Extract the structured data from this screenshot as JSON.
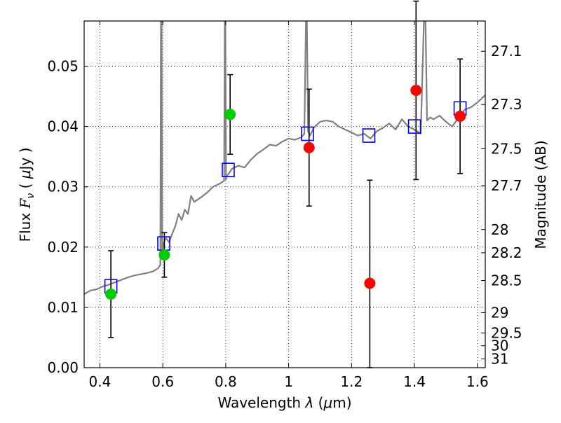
{
  "chart_data": {
    "type": "scatter",
    "title": "",
    "xlabel_parts": [
      "Wavelength  ",
      "λ",
      " (",
      "μ",
      "m)"
    ],
    "ylabel_parts": [
      "Flux  ",
      "F",
      "ν",
      "  ( ",
      "μ",
      "Jy )"
    ],
    "y2label": "Magnitude (AB)",
    "xlim": [
      0.35,
      1.625
    ],
    "ylim": [
      0.0,
      0.0575
    ],
    "grid": true,
    "x_ticks": [
      {
        "value": 0.4,
        "label": "0.4"
      },
      {
        "value": 0.6,
        "label": "0.6"
      },
      {
        "value": 0.8,
        "label": "0.8"
      },
      {
        "value": 1.0,
        "label": "1"
      },
      {
        "value": 1.2,
        "label": "1.2"
      },
      {
        "value": 1.4,
        "label": "1.4"
      },
      {
        "value": 1.6,
        "label": "1.6"
      }
    ],
    "y_ticks": [
      {
        "value": 0.0,
        "label": "0.00"
      },
      {
        "value": 0.01,
        "label": "0.01"
      },
      {
        "value": 0.02,
        "label": "0.02"
      },
      {
        "value": 0.03,
        "label": "0.03"
      },
      {
        "value": 0.04,
        "label": "0.04"
      },
      {
        "value": 0.05,
        "label": "0.05"
      }
    ],
    "y2_ticks": [
      {
        "value": 27.1,
        "label": "27.1"
      },
      {
        "value": 27.3,
        "label": "27.3"
      },
      {
        "value": 27.5,
        "label": "27.5"
      },
      {
        "value": 27.7,
        "label": "27.7"
      },
      {
        "value": 28.0,
        "label": "28"
      },
      {
        "value": 28.2,
        "label": "28.2"
      },
      {
        "value": 28.5,
        "label": "28.5"
      },
      {
        "value": 29.0,
        "label": "29"
      },
      {
        "value": 29.5,
        "label": "29.5"
      },
      {
        "value": 30.0,
        "label": "30"
      },
      {
        "value": 31.0,
        "label": "31"
      }
    ],
    "template_spectrum": {
      "color": "#808080",
      "x": [
        0.35,
        0.37,
        0.39,
        0.41,
        0.43,
        0.45,
        0.47,
        0.49,
        0.51,
        0.53,
        0.55,
        0.57,
        0.585,
        0.592,
        0.594,
        0.596,
        0.598,
        0.6,
        0.605,
        0.61,
        0.62,
        0.63,
        0.64,
        0.65,
        0.66,
        0.67,
        0.68,
        0.69,
        0.7,
        0.72,
        0.74,
        0.76,
        0.78,
        0.795,
        0.797,
        0.799,
        0.801,
        0.803,
        0.81,
        0.82,
        0.84,
        0.86,
        0.88,
        0.9,
        0.92,
        0.94,
        0.96,
        0.98,
        1.0,
        1.02,
        1.04,
        1.05,
        1.055,
        1.058,
        1.062,
        1.068,
        1.08,
        1.1,
        1.12,
        1.14,
        1.16,
        1.18,
        1.2,
        1.22,
        1.24,
        1.26,
        1.28,
        1.3,
        1.32,
        1.34,
        1.36,
        1.38,
        1.4,
        1.42,
        1.43,
        1.435,
        1.44,
        1.45,
        1.46,
        1.48,
        1.5,
        1.52,
        1.54,
        1.56,
        1.58,
        1.6,
        1.625
      ],
      "y": [
        0.0122,
        0.0128,
        0.013,
        0.0135,
        0.0138,
        0.0142,
        0.0146,
        0.015,
        0.0153,
        0.0155,
        0.0157,
        0.016,
        0.0165,
        0.017,
        0.0575,
        0.0575,
        0.018,
        0.0198,
        0.021,
        0.0215,
        0.0208,
        0.0222,
        0.0235,
        0.0255,
        0.0245,
        0.0262,
        0.0255,
        0.0285,
        0.0275,
        0.0282,
        0.029,
        0.03,
        0.0305,
        0.031,
        0.0575,
        0.0575,
        0.0312,
        0.0318,
        0.0322,
        0.033,
        0.0335,
        0.0332,
        0.0345,
        0.0355,
        0.0362,
        0.037,
        0.0368,
        0.0375,
        0.038,
        0.0378,
        0.0382,
        0.0388,
        0.0575,
        0.0575,
        0.0392,
        0.0385,
        0.0398,
        0.0408,
        0.041,
        0.0408,
        0.04,
        0.0395,
        0.039,
        0.0385,
        0.0388,
        0.038,
        0.0392,
        0.0398,
        0.0405,
        0.0395,
        0.0412,
        0.04,
        0.0395,
        0.0388,
        0.0575,
        0.0575,
        0.041,
        0.0415,
        0.0412,
        0.0418,
        0.0408,
        0.04,
        0.0415,
        0.0428,
        0.0432,
        0.044,
        0.0452
      ]
    },
    "model_photometry": {
      "marker": "open-square",
      "color": "#0000ff",
      "x": [
        0.435,
        0.603,
        0.808,
        1.06,
        1.255,
        1.4,
        1.545
      ],
      "y": [
        0.0135,
        0.0206,
        0.0328,
        0.0388,
        0.0385,
        0.04,
        0.043
      ]
    },
    "series": [
      {
        "color": "#00cc00",
        "x": [
          0.435,
          0.605,
          0.814
        ],
        "y": [
          0.0122,
          0.0187,
          0.042
        ],
        "err": [
          0.0072,
          0.0037,
          0.0066
        ]
      },
      {
        "color": "#ff0000",
        "x": [
          1.065,
          1.258,
          1.405,
          1.545
        ],
        "y": [
          0.0365,
          0.014,
          0.046,
          0.0417
        ],
        "err": [
          0.0097,
          0.0171,
          0.0148,
          0.0095
        ]
      }
    ]
  }
}
